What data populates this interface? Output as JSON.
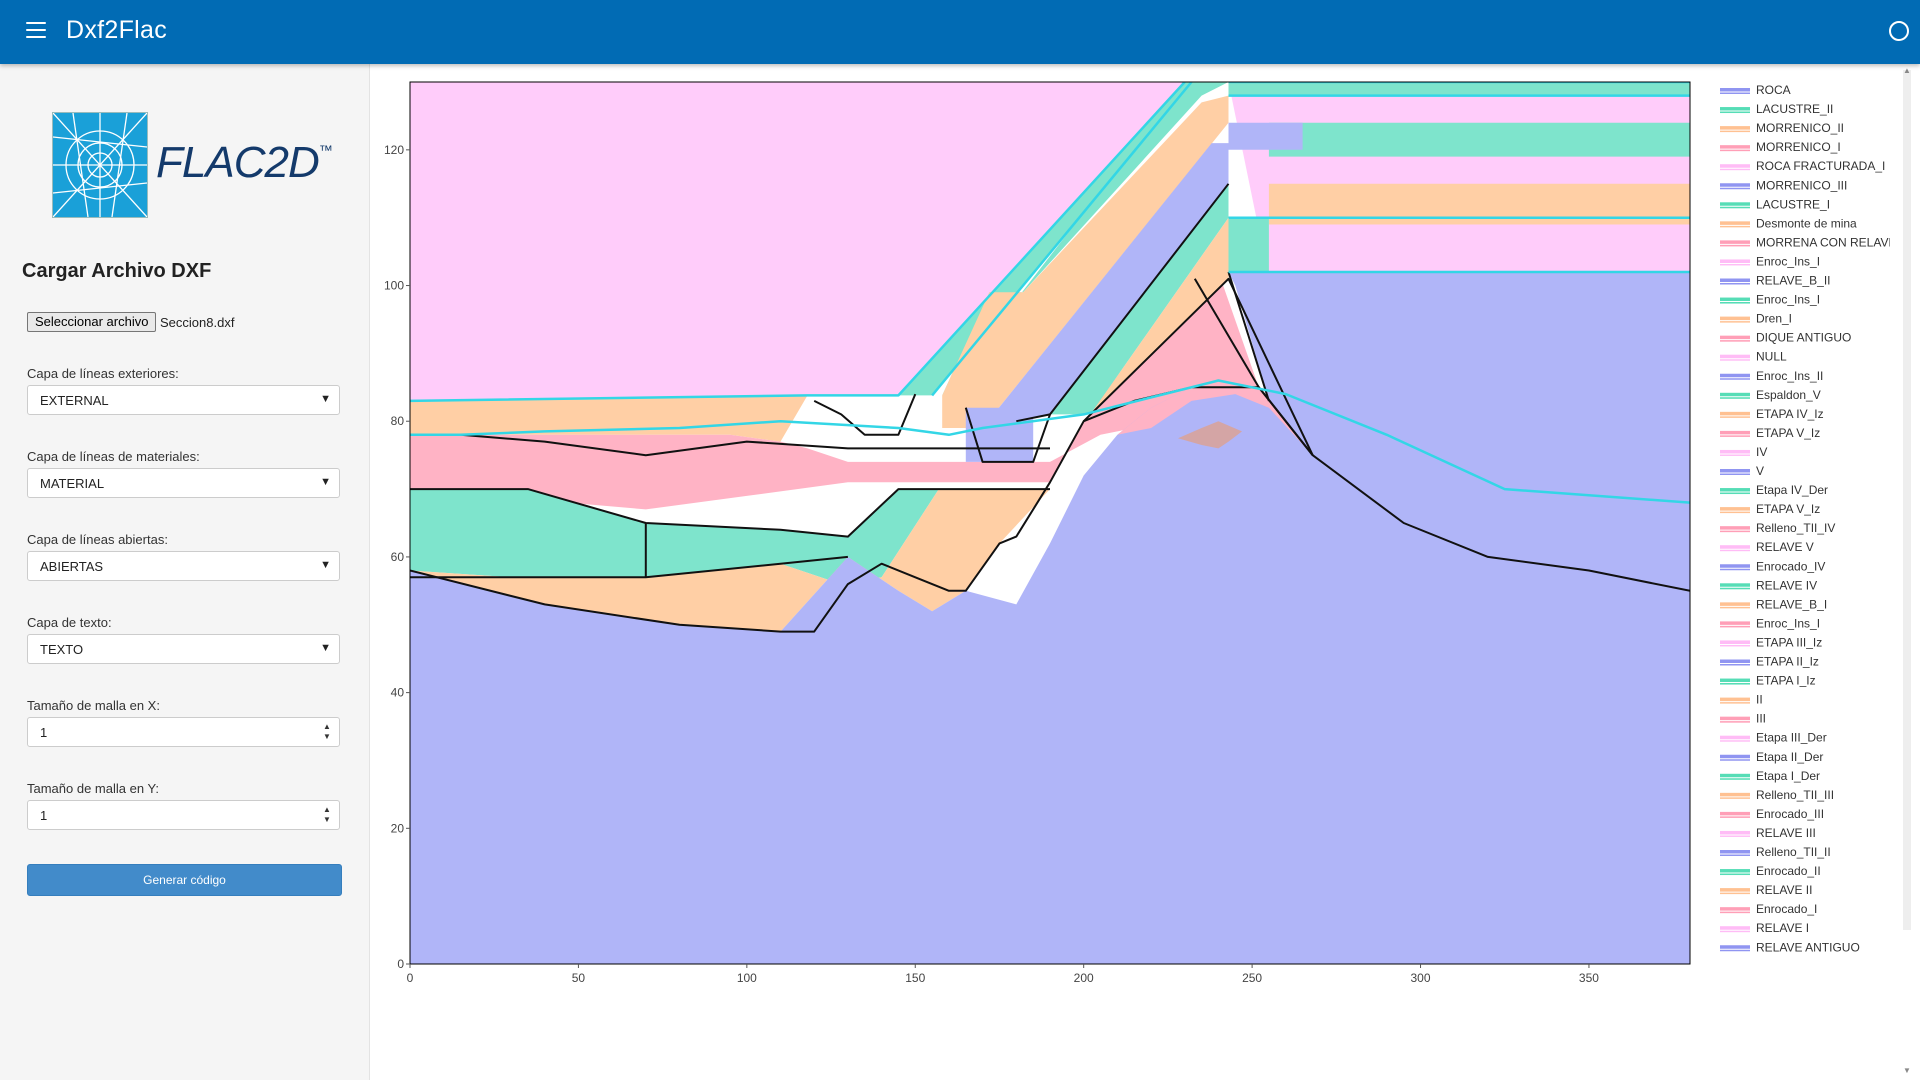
{
  "app": {
    "title": "Dxf2Flac"
  },
  "logo": {
    "text": "FLAC2D",
    "tm": "™"
  },
  "sidebar": {
    "section_title": "Cargar Archivo DXF",
    "file_button": "Seleccionar archivo",
    "file_name": "Seccion8.dxf",
    "fields": [
      {
        "label": "Capa de líneas exteriores:",
        "value": "EXTERNAL"
      },
      {
        "label": "Capa de líneas de materiales:",
        "value": "MATERIAL"
      },
      {
        "label": "Capa de líneas abiertas:",
        "value": "ABIERTAS"
      },
      {
        "label": "Capa de texto:",
        "value": "TEXTO"
      }
    ],
    "mesh_x": {
      "label": "Tamaño de malla en X:",
      "value": "1"
    },
    "mesh_y": {
      "label": "Tamaño de malla en Y:",
      "value": "1"
    },
    "generate_button": "Generar código"
  },
  "colors": {
    "appbar": "#016bb4",
    "ROCA": "#b0b5f8",
    "LACUSTRE": "#7ee4cc",
    "MORRENICO_II": "#ffcfa5",
    "MORRENICO_I": "#ffb3c5",
    "ROCA_FRACTURADA": "#ffccfa",
    "outline": "#111111",
    "open_lines": "#33d6e6"
  },
  "chart_data": {
    "type": "area",
    "xlim": [
      0,
      380
    ],
    "ylim": [
      0,
      130
    ],
    "x_ticks": [
      "0",
      "50",
      "100",
      "150",
      "200",
      "250",
      "300",
      "350"
    ],
    "y_ticks": [
      "0",
      "20",
      "40",
      "60",
      "80",
      "100",
      "120"
    ],
    "grid": false,
    "legend_position": "right",
    "legend": [
      "ROCA",
      "LACUSTRE_II",
      "MORRENICO_II",
      "MORRENICO_I",
      "ROCA FRACTURADA_I",
      "MORRENICO_III",
      "LACUSTRE_I",
      "Desmonte de mina",
      "MORRENA CON RELAVE",
      "Enroc_Ins_I",
      "RELAVE_B_II",
      "Enroc_Ins_I",
      "Dren_I",
      "DIQUE ANTIGUO",
      "NULL",
      "Enroc_Ins_II",
      "Espaldon_V",
      "ETAPA IV_Iz",
      "ETAPA V_Iz",
      "IV",
      "V",
      "Etapa IV_Der",
      "ETAPA V_Iz",
      "Relleno_TII_IV",
      "RELAVE V",
      "Enrocado_IV",
      "RELAVE IV",
      "RELAVE_B_I",
      "Enroc_Ins_I",
      "ETAPA III_Iz",
      "ETAPA II_Iz",
      "ETAPA I_Iz",
      "II",
      "III",
      "Etapa III_Der",
      "Etapa II_Der",
      "Etapa I_Der",
      "Relleno_TII_III",
      "Enrocado_III",
      "RELAVE III",
      "Relleno_TII_II",
      "Enrocado_II",
      "RELAVE II",
      "Enrocado_I",
      "RELAVE I",
      "RELAVE ANTIGUO"
    ],
    "legend_colors": [
      "#7c83ee",
      "#38d7a9",
      "#ffb67f",
      "#ff8eaa",
      "#ffb0f5"
    ],
    "regions": [
      {
        "color": "#ffccfa",
        "points": [
          [
            0,
            83
          ],
          [
            118,
            83.8
          ],
          [
            145,
            83.8
          ],
          [
            230,
            130
          ],
          [
            0,
            130
          ]
        ]
      },
      {
        "color": "#ffccfa",
        "points": [
          [
            243,
            130
          ],
          [
            380,
            130
          ],
          [
            380,
            102
          ],
          [
            255,
            101
          ]
        ]
      },
      {
        "color": "#ffcfa5",
        "points": [
          [
            0,
            83
          ],
          [
            118,
            83.8
          ],
          [
            110,
            77
          ],
          [
            95,
            78
          ],
          [
            0,
            78
          ]
        ]
      },
      {
        "color": "#ffb3c5",
        "points": [
          [
            0,
            78
          ],
          [
            95,
            78
          ],
          [
            110,
            77
          ],
          [
            118,
            76
          ],
          [
            130,
            74
          ],
          [
            190,
            74
          ],
          [
            190,
            71
          ],
          [
            130,
            71
          ],
          [
            100,
            69
          ],
          [
            70,
            67
          ],
          [
            0,
            70
          ]
        ]
      },
      {
        "color": "#ffb3c5",
        "points": [
          [
            190,
            71
          ],
          [
            200,
            80
          ],
          [
            215,
            90
          ],
          [
            230,
            100
          ],
          [
            240,
            102
          ],
          [
            252,
            85
          ],
          [
            245,
            85
          ],
          [
            230,
            80
          ],
          [
            215,
            79
          ],
          [
            205,
            78
          ],
          [
            190,
            74
          ]
        ]
      },
      {
        "color": "#7ee4cc",
        "points": [
          [
            0,
            70
          ],
          [
            35,
            70
          ],
          [
            70,
            65
          ],
          [
            110,
            64
          ],
          [
            130,
            63
          ],
          [
            145,
            70
          ],
          [
            157,
            70
          ],
          [
            140,
            57
          ],
          [
            128,
            56
          ],
          [
            110,
            59
          ],
          [
            70,
            57
          ],
          [
            30,
            57
          ],
          [
            0,
            58
          ]
        ]
      },
      {
        "color": "#ffcfa5",
        "points": [
          [
            30,
            57
          ],
          [
            70,
            57
          ],
          [
            110,
            59
          ],
          [
            128,
            56
          ],
          [
            140,
            57
          ],
          [
            157,
            70
          ],
          [
            190,
            70
          ],
          [
            175,
            62
          ],
          [
            165,
            55
          ],
          [
            155,
            52
          ],
          [
            145,
            55
          ],
          [
            130,
            60
          ],
          [
            110,
            49
          ],
          [
            80,
            50
          ],
          [
            40,
            53
          ],
          [
            0,
            58
          ]
        ]
      },
      {
        "color": "#b0b5f8",
        "points": [
          [
            0,
            0
          ],
          [
            380,
            0
          ],
          [
            380,
            55
          ],
          [
            350,
            58
          ],
          [
            320,
            60
          ],
          [
            295,
            65
          ],
          [
            270,
            74
          ],
          [
            252,
            85
          ],
          [
            240,
            86
          ],
          [
            232,
            85
          ],
          [
            220,
            82
          ],
          [
            210,
            78
          ],
          [
            200,
            72
          ],
          [
            190,
            62
          ],
          [
            180,
            53
          ],
          [
            165,
            55
          ],
          [
            155,
            52
          ],
          [
            145,
            55
          ],
          [
            130,
            60
          ],
          [
            110,
            49
          ],
          [
            80,
            50
          ],
          [
            40,
            53
          ],
          [
            0,
            58
          ]
        ]
      },
      {
        "color": "#b0b5f8",
        "points": [
          [
            243,
            102
          ],
          [
            380,
            102
          ],
          [
            380,
            55
          ],
          [
            350,
            58
          ],
          [
            320,
            60
          ],
          [
            295,
            65
          ],
          [
            270,
            74
          ],
          [
            255,
            83
          ],
          [
            245,
            100
          ]
        ]
      },
      {
        "color": "#ffb3c5",
        "points": [
          [
            210,
            78
          ],
          [
            220,
            82
          ],
          [
            232,
            85
          ],
          [
            240,
            86
          ],
          [
            252,
            85
          ],
          [
            268,
            75
          ],
          [
            255,
            82
          ],
          [
            245,
            84
          ],
          [
            232,
            83
          ],
          [
            220,
            79
          ]
        ]
      },
      {
        "color": "#d4a5a5",
        "points": [
          [
            228,
            77.5
          ],
          [
            235,
            79
          ],
          [
            240,
            80
          ],
          [
            247,
            78.5
          ],
          [
            243,
            77
          ],
          [
            240,
            76
          ],
          [
            235,
            76.5
          ]
        ]
      },
      {
        "color": "#7ee4cc",
        "points": [
          [
            145,
            83.8
          ],
          [
            155,
            83.8
          ],
          [
            232,
            130
          ],
          [
            230,
            130
          ]
        ]
      },
      {
        "color": "#7ee4cc",
        "points": [
          [
            145,
            83.8
          ],
          [
            158,
            83.8
          ],
          [
            230,
            130
          ],
          [
            243,
            130
          ],
          [
            235,
            128
          ],
          [
            182,
            99
          ],
          [
            172,
            99
          ],
          [
            158,
            83.8
          ]
        ]
      },
      {
        "color": "#ffcfa5",
        "points": [
          [
            158,
            79
          ],
          [
            170,
            79
          ],
          [
            243,
            124
          ],
          [
            243,
            128
          ],
          [
            235,
            127
          ],
          [
            182,
            99
          ],
          [
            172,
            99
          ],
          [
            158,
            83.8
          ]
        ]
      },
      {
        "color": "#b0b5f8",
        "points": [
          [
            180,
            80
          ],
          [
            190,
            81
          ],
          [
            243,
            115
          ],
          [
            243,
            121
          ],
          [
            238,
            121
          ],
          [
            170,
            79
          ]
        ]
      },
      {
        "color": "#7ee4cc",
        "points": [
          [
            190,
            81
          ],
          [
            202,
            81
          ],
          [
            243,
            110
          ],
          [
            243,
            115
          ]
        ]
      },
      {
        "color": "#ffcfa5",
        "points": [
          [
            202,
            81
          ],
          [
            243,
            101
          ],
          [
            243,
            110
          ]
        ]
      },
      {
        "color": "#7ee4cc",
        "points": [
          [
            243,
            128
          ],
          [
            380,
            128
          ],
          [
            380,
            130
          ],
          [
            243,
            130
          ]
        ]
      },
      {
        "color": "#7ee4cc",
        "points": [
          [
            255,
            124
          ],
          [
            380,
            124
          ],
          [
            380,
            119
          ],
          [
            255,
            119
          ]
        ]
      },
      {
        "color": "#ffcfa5",
        "points": [
          [
            255,
            115
          ],
          [
            380,
            115
          ],
          [
            380,
            109
          ],
          [
            255,
            109
          ]
        ]
      },
      {
        "color": "#7ee4cc",
        "points": [
          [
            243,
            110
          ],
          [
            255,
            110
          ],
          [
            255,
            102
          ],
          [
            243,
            102
          ]
        ]
      },
      {
        "color": "#b0b5f8",
        "points": [
          [
            243,
            124
          ],
          [
            265,
            124
          ],
          [
            265,
            120
          ],
          [
            243,
            120
          ]
        ]
      },
      {
        "color": "#b0b5f8",
        "points": [
          [
            165,
            82
          ],
          [
            185,
            82
          ],
          [
            185,
            74
          ],
          [
            165,
            74
          ]
        ]
      }
    ],
    "outlines": [
      [
        [
          0,
          58
        ],
        [
          40,
          53
        ],
        [
          80,
          50
        ],
        [
          110,
          49
        ],
        [
          120,
          49
        ],
        [
          130,
          56
        ],
        [
          140,
          59
        ],
        [
          150,
          57
        ],
        [
          160,
          55
        ],
        [
          165,
          55
        ],
        [
          175,
          62
        ],
        [
          180,
          63
        ],
        [
          190,
          71
        ],
        [
          200,
          80
        ],
        [
          215,
          83
        ],
        [
          232,
          85
        ],
        [
          252,
          85
        ],
        [
          268,
          75
        ],
        [
          295,
          65
        ],
        [
          320,
          60
        ],
        [
          350,
          58
        ],
        [
          380,
          55
        ]
      ],
      [
        [
          0,
          78
        ],
        [
          15,
          78
        ],
        [
          40,
          77
        ],
        [
          70,
          75
        ],
        [
          100,
          77
        ],
        [
          130,
          76
        ],
        [
          180,
          76
        ],
        [
          190,
          76
        ]
      ],
      [
        [
          0,
          70
        ],
        [
          35,
          70
        ],
        [
          70,
          65
        ],
        [
          110,
          64
        ],
        [
          130,
          63
        ],
        [
          145,
          70
        ],
        [
          190,
          70
        ]
      ],
      [
        [
          0,
          57
        ],
        [
          30,
          57
        ],
        [
          70,
          57
        ],
        [
          110,
          59
        ],
        [
          130,
          60
        ]
      ],
      [
        [
          70,
          57
        ],
        [
          70,
          65
        ]
      ],
      [
        [
          233,
          101
        ],
        [
          252,
          85
        ],
        [
          268,
          75
        ]
      ],
      [
        [
          243,
          102
        ],
        [
          255,
          83
        ]
      ],
      [
        [
          180,
          80
        ],
        [
          190,
          81
        ],
        [
          243,
          115
        ]
      ],
      [
        [
          200,
          80
        ],
        [
          243,
          101
        ],
        [
          268,
          75
        ]
      ],
      [
        [
          120,
          83
        ],
        [
          128,
          81
        ],
        [
          135,
          78
        ],
        [
          145,
          78
        ],
        [
          150,
          84
        ]
      ],
      [
        [
          165,
          82
        ],
        [
          170,
          74
        ],
        [
          185,
          74
        ],
        [
          190,
          81
        ]
      ]
    ],
    "open_lines": [
      [
        [
          0,
          83
        ],
        [
          118,
          83.8
        ],
        [
          145,
          83.8
        ],
        [
          230,
          130
        ]
      ],
      [
        [
          155,
          83.8
        ],
        [
          232,
          130
        ]
      ],
      [
        [
          0,
          78
        ],
        [
          15,
          78
        ],
        [
          40,
          78.5
        ],
        [
          80,
          79
        ],
        [
          110,
          80
        ],
        [
          145,
          79
        ],
        [
          160,
          78
        ],
        [
          170,
          79
        ],
        [
          200,
          81
        ],
        [
          240,
          86
        ],
        [
          260,
          84
        ],
        [
          290,
          78
        ],
        [
          325,
          70
        ],
        [
          380,
          68
        ]
      ],
      [
        [
          243,
          130
        ],
        [
          380,
          130
        ]
      ],
      [
        [
          243,
          128
        ],
        [
          380,
          128
        ]
      ],
      [
        [
          243,
          102
        ],
        [
          380,
          102
        ]
      ],
      [
        [
          243,
          110
        ],
        [
          380,
          110
        ]
      ]
    ]
  }
}
